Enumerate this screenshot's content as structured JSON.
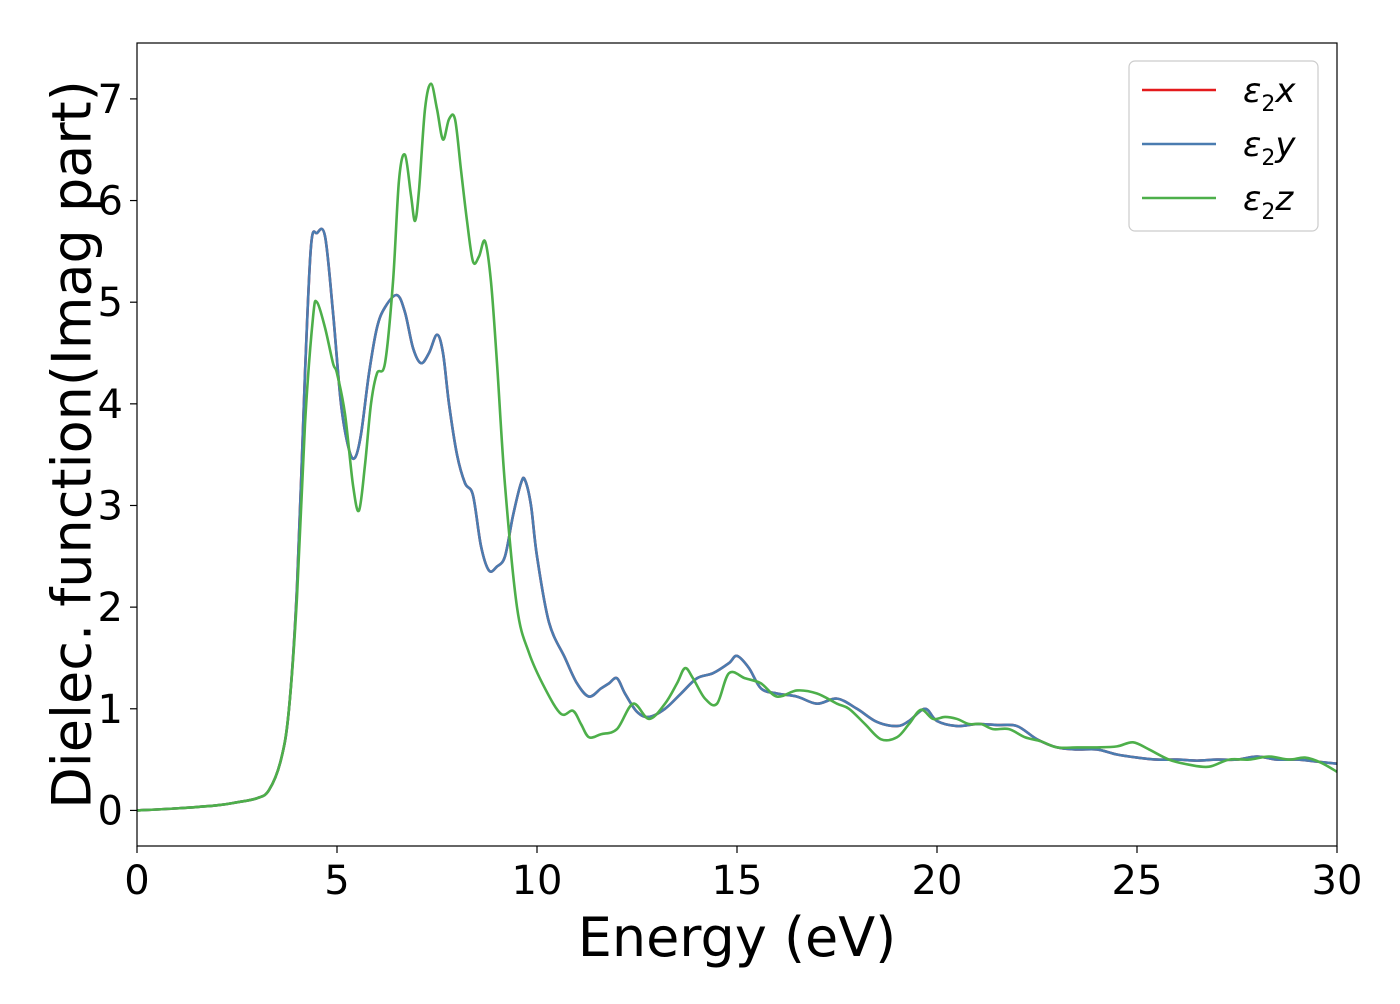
{
  "chart_data": {
    "type": "line",
    "xlabel": "Energy (eV)",
    "ylabel": "Dielec. function(Imag part)",
    "xlim": [
      0,
      30
    ],
    "ylim": [
      -0.35,
      7.55
    ],
    "xticks": [
      "0",
      "5",
      "10",
      "15",
      "20",
      "25",
      "30"
    ],
    "yticks": [
      "0",
      "1",
      "2",
      "3",
      "4",
      "5",
      "6",
      "7"
    ],
    "grid": false,
    "legend_position": "top-right",
    "series": [
      {
        "name": "ε₂x",
        "legend_base": "ε",
        "legend_sub": "2",
        "legend_var": "x",
        "color": "#e41a1c",
        "x": [
          0,
          1,
          2,
          2.5,
          3,
          3.3,
          3.6,
          3.8,
          4.0,
          4.2,
          4.35,
          4.5,
          4.7,
          4.9,
          5.1,
          5.3,
          5.45,
          5.6,
          5.8,
          6.0,
          6.2,
          6.5,
          6.7,
          6.9,
          7.1,
          7.3,
          7.5,
          7.65,
          7.8,
          8.0,
          8.2,
          8.4,
          8.6,
          8.8,
          9.0,
          9.2,
          9.4,
          9.6,
          9.7,
          9.85,
          10.0,
          10.3,
          10.7,
          11.0,
          11.3,
          11.6,
          11.8,
          12.0,
          12.2,
          12.5,
          12.8,
          13.2,
          13.6,
          14.0,
          14.4,
          14.8,
          15.0,
          15.3,
          15.6,
          16.0,
          16.5,
          17.0,
          17.5,
          18.0,
          18.5,
          19.0,
          19.3,
          19.7,
          20.0,
          20.5,
          21.0,
          21.5,
          22.0,
          22.5,
          23.0,
          23.5,
          24.0,
          24.5,
          25.0,
          25.5,
          26.0,
          26.5,
          27.0,
          27.5,
          28.0,
          28.5,
          29.0,
          29.5,
          30.0
        ],
        "values": [
          0,
          0.02,
          0.05,
          0.08,
          0.12,
          0.2,
          0.5,
          1.0,
          2.2,
          4.3,
          5.55,
          5.68,
          5.65,
          4.9,
          4.0,
          3.55,
          3.47,
          3.7,
          4.3,
          4.75,
          4.95,
          5.07,
          4.9,
          4.55,
          4.4,
          4.5,
          4.68,
          4.5,
          4.0,
          3.5,
          3.22,
          3.1,
          2.6,
          2.36,
          2.4,
          2.5,
          2.9,
          3.22,
          3.25,
          3.0,
          2.5,
          1.85,
          1.5,
          1.25,
          1.12,
          1.2,
          1.25,
          1.3,
          1.15,
          0.97,
          0.92,
          1.0,
          1.15,
          1.3,
          1.35,
          1.45,
          1.52,
          1.4,
          1.2,
          1.15,
          1.12,
          1.05,
          1.1,
          1.0,
          0.87,
          0.83,
          0.88,
          1.0,
          0.88,
          0.83,
          0.85,
          0.84,
          0.83,
          0.7,
          0.62,
          0.6,
          0.6,
          0.55,
          0.52,
          0.5,
          0.5,
          0.49,
          0.5,
          0.5,
          0.53,
          0.5,
          0.5,
          0.48,
          0.46
        ]
      },
      {
        "name": "ε₂y",
        "legend_base": "ε",
        "legend_sub": "2",
        "legend_var": "y",
        "color": "#4a7cb0",
        "x": [
          0,
          1,
          2,
          2.5,
          3,
          3.3,
          3.6,
          3.8,
          4.0,
          4.2,
          4.35,
          4.5,
          4.7,
          4.9,
          5.1,
          5.3,
          5.45,
          5.6,
          5.8,
          6.0,
          6.2,
          6.5,
          6.7,
          6.9,
          7.1,
          7.3,
          7.5,
          7.65,
          7.8,
          8.0,
          8.2,
          8.4,
          8.6,
          8.8,
          9.0,
          9.2,
          9.4,
          9.6,
          9.7,
          9.85,
          10.0,
          10.3,
          10.7,
          11.0,
          11.3,
          11.6,
          11.8,
          12.0,
          12.2,
          12.5,
          12.8,
          13.2,
          13.6,
          14.0,
          14.4,
          14.8,
          15.0,
          15.3,
          15.6,
          16.0,
          16.5,
          17.0,
          17.5,
          18.0,
          18.5,
          19.0,
          19.3,
          19.7,
          20.0,
          20.5,
          21.0,
          21.5,
          22.0,
          22.5,
          23.0,
          23.5,
          24.0,
          24.5,
          25.0,
          25.5,
          26.0,
          26.5,
          27.0,
          27.5,
          28.0,
          28.5,
          29.0,
          29.5,
          30.0
        ],
        "values": [
          0,
          0.02,
          0.05,
          0.08,
          0.12,
          0.2,
          0.5,
          1.0,
          2.2,
          4.3,
          5.55,
          5.68,
          5.65,
          4.9,
          4.0,
          3.55,
          3.47,
          3.7,
          4.3,
          4.75,
          4.95,
          5.07,
          4.9,
          4.55,
          4.4,
          4.5,
          4.68,
          4.5,
          4.0,
          3.5,
          3.22,
          3.1,
          2.6,
          2.36,
          2.4,
          2.5,
          2.9,
          3.22,
          3.25,
          3.0,
          2.5,
          1.85,
          1.5,
          1.25,
          1.12,
          1.2,
          1.25,
          1.3,
          1.15,
          0.97,
          0.92,
          1.0,
          1.15,
          1.3,
          1.35,
          1.45,
          1.52,
          1.4,
          1.2,
          1.15,
          1.12,
          1.05,
          1.1,
          1.0,
          0.87,
          0.83,
          0.88,
          1.0,
          0.88,
          0.83,
          0.85,
          0.84,
          0.83,
          0.7,
          0.62,
          0.6,
          0.6,
          0.55,
          0.52,
          0.5,
          0.5,
          0.49,
          0.5,
          0.5,
          0.53,
          0.5,
          0.5,
          0.48,
          0.46
        ]
      },
      {
        "name": "ε₂z",
        "legend_base": "ε",
        "legend_sub": "2",
        "legend_var": "z",
        "color": "#4daf4a",
        "x": [
          0,
          1,
          2,
          2.5,
          3,
          3.3,
          3.6,
          3.8,
          4.0,
          4.2,
          4.4,
          4.5,
          4.7,
          4.9,
          5.0,
          5.2,
          5.4,
          5.55,
          5.7,
          5.85,
          6.0,
          6.2,
          6.4,
          6.55,
          6.7,
          6.85,
          6.95,
          7.05,
          7.2,
          7.35,
          7.5,
          7.65,
          7.8,
          7.95,
          8.1,
          8.25,
          8.4,
          8.55,
          8.7,
          8.85,
          9.0,
          9.2,
          9.5,
          9.8,
          10.2,
          10.6,
          10.9,
          11.1,
          11.3,
          11.6,
          12.0,
          12.4,
          12.8,
          13.2,
          13.5,
          13.7,
          13.9,
          14.2,
          14.5,
          14.8,
          15.2,
          15.6,
          16.0,
          16.5,
          17.0,
          17.5,
          17.8,
          18.2,
          18.6,
          19.0,
          19.3,
          19.6,
          19.9,
          20.2,
          20.5,
          20.8,
          21.1,
          21.4,
          21.8,
          22.2,
          22.6,
          23.0,
          23.5,
          24.0,
          24.5,
          24.9,
          25.3,
          25.8,
          26.3,
          26.8,
          27.3,
          27.8,
          28.3,
          28.8,
          29.2,
          29.6,
          30.0
        ],
        "values": [
          0,
          0.02,
          0.05,
          0.08,
          0.12,
          0.2,
          0.5,
          1.0,
          2.1,
          3.8,
          4.85,
          5.0,
          4.75,
          4.4,
          4.3,
          3.9,
          3.2,
          2.95,
          3.4,
          4.0,
          4.3,
          4.4,
          5.2,
          6.2,
          6.45,
          6.05,
          5.8,
          6.1,
          6.9,
          7.15,
          6.9,
          6.6,
          6.8,
          6.8,
          6.3,
          5.8,
          5.4,
          5.45,
          5.6,
          5.2,
          4.4,
          3.2,
          2.0,
          1.55,
          1.2,
          0.95,
          0.98,
          0.85,
          0.72,
          0.75,
          0.8,
          1.05,
          0.9,
          1.05,
          1.25,
          1.4,
          1.3,
          1.1,
          1.05,
          1.35,
          1.3,
          1.25,
          1.12,
          1.18,
          1.15,
          1.05,
          1.0,
          0.85,
          0.7,
          0.72,
          0.85,
          0.99,
          0.9,
          0.92,
          0.9,
          0.85,
          0.85,
          0.8,
          0.8,
          0.72,
          0.68,
          0.62,
          0.62,
          0.62,
          0.63,
          0.67,
          0.6,
          0.5,
          0.45,
          0.43,
          0.5,
          0.5,
          0.53,
          0.5,
          0.52,
          0.47,
          0.38
        ]
      }
    ]
  }
}
